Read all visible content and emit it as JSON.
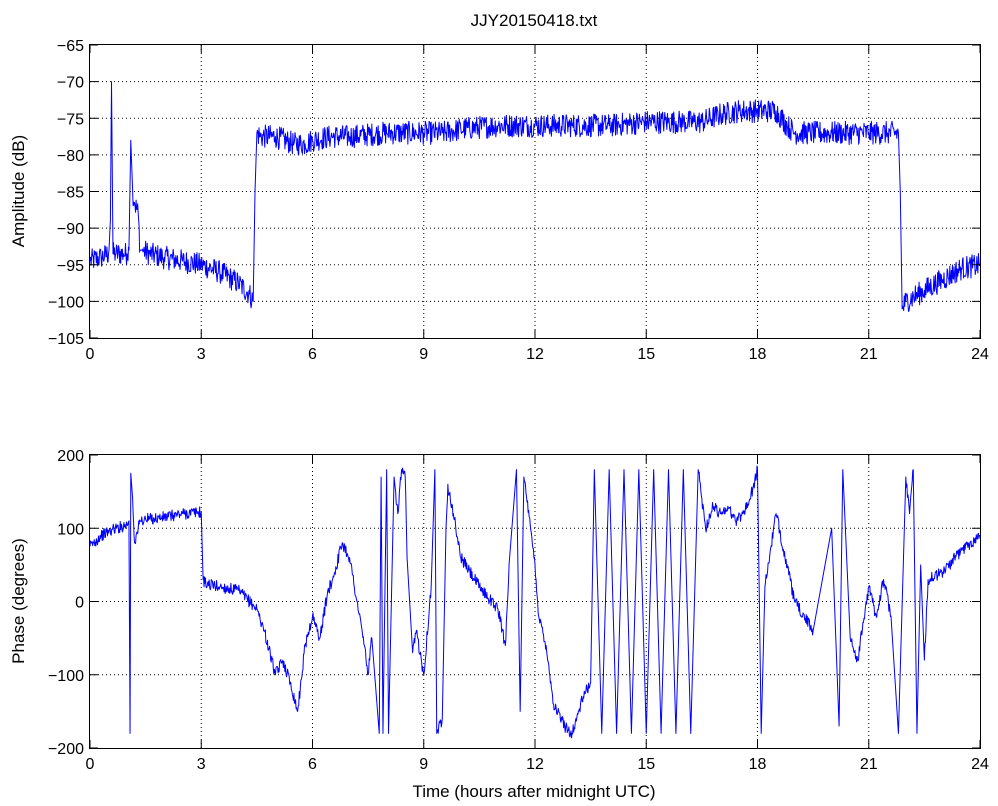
{
  "chart_data": [
    {
      "type": "line",
      "title": "JJY20150418.txt",
      "xlabel": "",
      "ylabel": "Amplitude (dB)",
      "xlim": [
        0,
        24
      ],
      "ylim": [
        -105,
        -65
      ],
      "xticks": [
        "0",
        "3",
        "6",
        "9",
        "12",
        "15",
        "18",
        "21",
        "24"
      ],
      "yticks": [
        "-65",
        "-70",
        "-75",
        "-80",
        "-85",
        "-90",
        "-95",
        "-100",
        "-105"
      ],
      "grid": true,
      "series": [
        {
          "color": "#0000ff",
          "x": [
            0.0,
            0.3,
            0.5,
            0.55,
            0.58,
            0.62,
            0.7,
            0.9,
            1.0,
            1.05,
            1.1,
            1.15,
            1.2,
            1.3,
            1.35,
            1.4,
            1.6,
            2.0,
            2.5,
            3.0,
            3.5,
            4.0,
            4.3,
            4.4,
            4.45,
            4.5,
            4.6,
            5.0,
            5.5,
            5.8,
            6.0,
            6.5,
            7.0,
            8.0,
            9.0,
            9.5,
            10.0,
            11.0,
            12.0,
            13.0,
            14.0,
            15.0,
            16.0,
            16.5,
            17.0,
            17.5,
            18.0,
            18.5,
            18.8,
            19.0,
            20.0,
            21.0,
            21.5,
            21.8,
            21.85,
            21.9,
            22.0,
            22.5,
            23.0,
            23.5,
            24.0
          ],
          "y": [
            -94.5,
            -94.0,
            -93.5,
            -89.0,
            -70.0,
            -93.5,
            -93.5,
            -93.5,
            -93.5,
            -93.0,
            -78.0,
            -85.0,
            -86.5,
            -88.0,
            -93.0,
            -93.0,
            -93.5,
            -94.0,
            -94.5,
            -95.0,
            -96.0,
            -97.5,
            -99.0,
            -100.0,
            -85.0,
            -77.0,
            -77.5,
            -77.5,
            -78.5,
            -78.5,
            -78.0,
            -77.5,
            -77.5,
            -77.0,
            -77.0,
            -77.0,
            -76.5,
            -76.0,
            -76.0,
            -76.0,
            -76.0,
            -75.5,
            -75.5,
            -75.5,
            -74.5,
            -74.0,
            -74.0,
            -74.0,
            -76.0,
            -77.0,
            -77.0,
            -77.0,
            -77.0,
            -77.0,
            -85.0,
            -101.0,
            -100.0,
            -98.5,
            -97.0,
            -95.5,
            -95.0
          ]
        }
      ]
    },
    {
      "type": "line",
      "title": "",
      "xlabel": "Time (hours after midnight UTC)",
      "ylabel": "Phase (degrees)",
      "xlim": [
        0,
        24
      ],
      "ylim": [
        -200,
        200
      ],
      "xticks": [
        "0",
        "3",
        "6",
        "9",
        "12",
        "15",
        "18",
        "21",
        "24"
      ],
      "yticks": [
        "200",
        "100",
        "0",
        "-100",
        "-200"
      ],
      "grid": true,
      "series": [
        {
          "color": "#0000ff",
          "x": [
            0.0,
            0.3,
            0.6,
            1.0,
            1.05,
            1.08,
            1.1,
            1.15,
            1.2,
            1.3,
            1.35,
            1.5,
            2.0,
            2.5,
            3.0,
            3.05,
            3.1,
            3.5,
            4.0,
            4.5,
            4.7,
            5.0,
            5.2,
            5.4,
            5.6,
            5.8,
            6.0,
            6.2,
            6.4,
            6.6,
            6.8,
            7.0,
            7.2,
            7.4,
            7.5,
            7.6,
            7.8,
            7.85,
            7.9,
            8.0,
            8.05,
            8.2,
            8.3,
            8.4,
            8.5,
            8.55,
            8.7,
            8.8,
            9.0,
            9.2,
            9.3,
            9.35,
            9.5,
            9.6,
            9.65,
            9.8,
            10.0,
            10.5,
            11.0,
            11.2,
            11.3,
            11.5,
            11.6,
            11.7,
            12.0,
            12.1,
            12.3,
            12.5,
            12.8,
            13.0,
            13.3,
            13.5,
            13.6,
            13.8,
            14.0,
            14.2,
            14.4,
            14.6,
            14.8,
            15.0,
            15.2,
            15.4,
            15.6,
            15.8,
            16.0,
            16.2,
            16.4,
            16.6,
            16.8,
            17.0,
            17.2,
            17.4,
            17.6,
            17.8,
            18.0,
            18.1,
            18.2,
            18.5,
            19.0,
            19.5,
            20.0,
            20.2,
            20.3,
            20.5,
            20.7,
            21.0,
            21.2,
            21.4,
            21.6,
            21.8,
            22.0,
            22.1,
            22.2,
            22.3,
            22.4,
            22.5,
            22.6,
            23.0,
            23.5,
            24.0
          ],
          "y": [
            75,
            90,
            98,
            105,
            110,
            -180,
            175,
            140,
            80,
            100,
            110,
            112,
            115,
            120,
            122,
            30,
            25,
            20,
            15,
            -10,
            -40,
            -100,
            -80,
            -110,
            -150,
            -60,
            -20,
            -50,
            10,
            40,
            80,
            60,
            0,
            -60,
            -100,
            -50,
            -180,
            170,
            -180,
            180,
            -180,
            170,
            120,
            180,
            170,
            60,
            -70,
            -40,
            -100,
            20,
            180,
            -180,
            -160,
            100,
            160,
            120,
            60,
            20,
            -10,
            -60,
            50,
            180,
            -150,
            170,
            50,
            -20,
            -60,
            -140,
            -170,
            -180,
            -130,
            -110,
            180,
            -180,
            180,
            -180,
            180,
            -180,
            180,
            -180,
            180,
            -180,
            180,
            -180,
            180,
            -180,
            180,
            100,
            130,
            120,
            130,
            110,
            120,
            140,
            180,
            -180,
            20,
            120,
            0,
            -40,
            100,
            -170,
            180,
            -50,
            -80,
            20,
            -20,
            30,
            -20,
            -180,
            170,
            120,
            180,
            -180,
            50,
            -80,
            30,
            40,
            70,
            90
          ]
        }
      ]
    }
  ]
}
